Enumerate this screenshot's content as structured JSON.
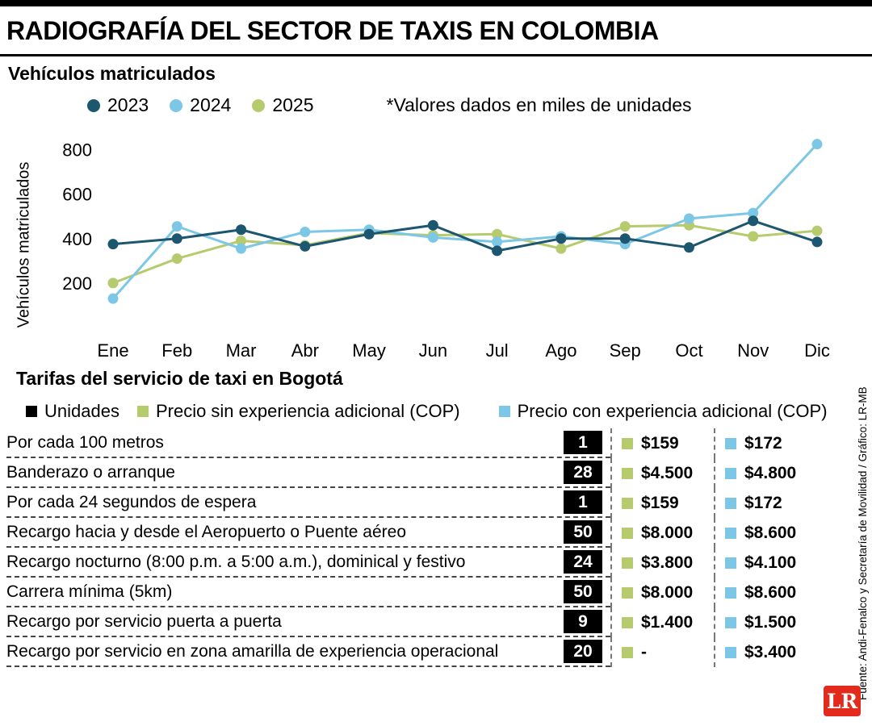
{
  "page": {
    "title": "RADIOGRAFÍA DEL SECTOR DE TAXIS EN COLOMBIA",
    "source": "Fuente: Andi-Fenalco y Secretaría de Movilidad / Gráfico: LR-MB",
    "logo": "LR"
  },
  "chart_data": {
    "type": "line",
    "title": "Vehículos matriculados",
    "note": "*Valores dados en miles de unidades",
    "ylabel": "Vehículos matriculados",
    "categories": [
      "Ene",
      "Feb",
      "Mar",
      "Abr",
      "May",
      "Jun",
      "Jul",
      "Ago",
      "Sep",
      "Oct",
      "Nov",
      "Dic"
    ],
    "yticks": [
      200,
      400,
      600,
      800
    ],
    "ylim": [
      0,
      900
    ],
    "grid": false,
    "legend_position": "top",
    "series": [
      {
        "name": "2023",
        "color": "#1c566f",
        "values": [
          375,
          400,
          440,
          365,
          420,
          460,
          345,
          400,
          400,
          360,
          480,
          385
        ]
      },
      {
        "name": "2024",
        "color": "#7cc7e5",
        "values": [
          130,
          455,
          355,
          430,
          440,
          405,
          385,
          410,
          375,
          490,
          515,
          825
        ]
      },
      {
        "name": "2025",
        "color": "#b6ca6e",
        "values": [
          200,
          310,
          390,
          370,
          425,
          415,
          420,
          355,
          455,
          460,
          410,
          435
        ]
      }
    ]
  },
  "tariffs": {
    "title": "Tarifas del servicio de taxi en Bogotá",
    "legend": [
      {
        "label": "Unidades",
        "color": "#000000"
      },
      {
        "label": "Precio sin experiencia adicional (COP)",
        "color": "#b6ca6e"
      },
      {
        "label": "Precio con experiencia adicional (COP)",
        "color": "#7cc7e5"
      }
    ],
    "rows": [
      {
        "label": "Por cada 100 metros",
        "units": "1",
        "price_without": "$159",
        "price_with": "$172"
      },
      {
        "label": "Banderazo o arranque",
        "units": "28",
        "price_without": "$4.500",
        "price_with": "$4.800"
      },
      {
        "label": "Por cada 24 segundos de espera",
        "units": "1",
        "price_without": "$159",
        "price_with": "$172"
      },
      {
        "label": "Recargo hacia y desde el Aeropuerto o Puente aéreo",
        "units": "50",
        "price_without": "$8.000",
        "price_with": "$8.600"
      },
      {
        "label": "Recargo nocturno (8:00 p.m. a 5:00 a.m.), dominical y festivo",
        "units": "24",
        "price_without": "$3.800",
        "price_with": "$4.100"
      },
      {
        "label": "Carrera mínima (5km)",
        "units": "50",
        "price_without": "$8.000",
        "price_with": "$8.600"
      },
      {
        "label": "Recargo por servicio puerta a puerta",
        "units": "9",
        "price_without": "$1.400",
        "price_with": "$1.500"
      },
      {
        "label": "Recargo por servicio en zona amarilla de experiencia operacional",
        "units": "20",
        "price_without": "-",
        "price_with": "$3.400"
      }
    ]
  }
}
